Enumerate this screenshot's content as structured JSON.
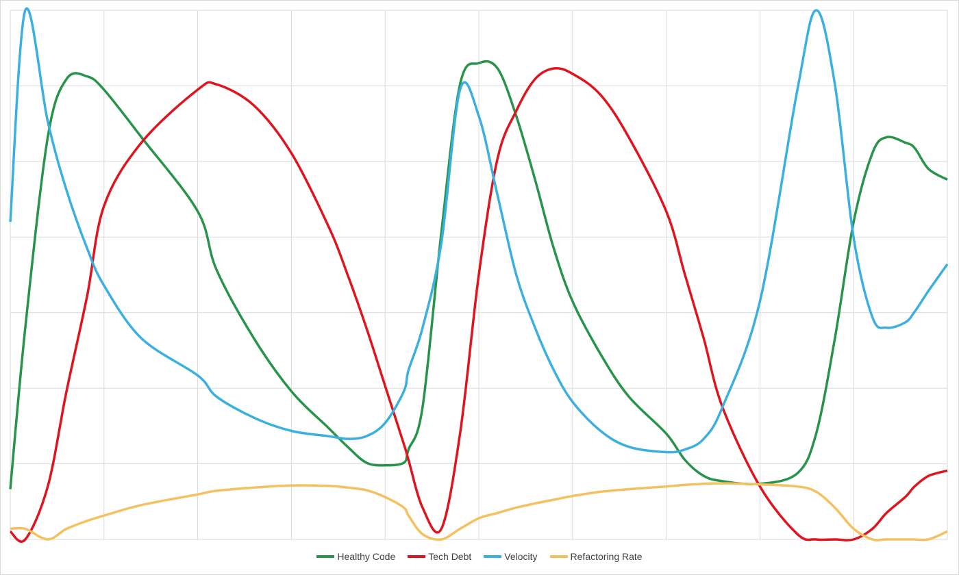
{
  "chart_data": {
    "type": "line",
    "title": "",
    "xlabel": "",
    "ylabel": "",
    "xlim": [
      0,
      100
    ],
    "ylim": [
      0,
      100
    ],
    "grid": true,
    "legend_position": "bottom",
    "x": [
      0,
      1.6,
      4,
      6,
      8.2,
      10,
      14,
      20,
      22,
      26,
      30,
      34,
      36,
      38,
      40,
      42,
      42.5,
      44,
      46,
      48,
      50,
      52,
      54,
      56,
      58,
      60,
      63,
      66,
      70,
      72,
      74,
      76,
      80,
      84,
      86,
      88,
      90,
      92,
      93.5,
      95.5,
      96.5,
      98,
      100
    ],
    "series": [
      {
        "name": "Healthy Code",
        "color": "#27944a",
        "values": [
          9.5,
          40,
          76,
          87,
          87.5,
          85,
          76,
          62,
          51,
          38,
          28,
          21,
          17.5,
          14.5,
          14,
          14.5,
          17,
          25,
          58,
          86,
          90,
          89,
          80,
          68,
          55,
          45,
          35,
          27,
          20,
          15,
          12,
          11,
          10.5,
          12.5,
          20,
          38,
          60,
          73,
          76,
          75,
          74,
          70,
          68
        ]
      },
      {
        "name": "Tech Debt",
        "color": "#e0141e",
        "values": [
          1.5,
          0,
          10,
          28,
          46,
          63,
          75,
          85,
          86,
          82,
          73,
          59,
          50,
          40,
          29,
          18,
          15,
          6,
          2,
          20,
          50,
          72,
          81,
          87,
          89,
          88,
          84,
          76,
          62,
          50,
          38,
          25,
          10,
          1,
          0,
          0,
          0,
          2,
          5,
          8,
          10,
          12,
          13
        ]
      },
      {
        "name": "Velocity",
        "color": "#3bb0e0",
        "values": [
          60,
          100,
          79,
          66,
          55,
          48,
          38,
          31,
          27,
          23,
          20.5,
          19.5,
          19,
          19.5,
          22,
          28,
          32,
          40,
          56,
          85,
          80,
          65,
          50,
          40,
          32,
          26,
          20.5,
          17.5,
          16.5,
          17,
          19,
          25,
          45,
          85,
          100,
          86,
          57,
          42,
          40,
          41,
          43,
          47,
          52
        ]
      },
      {
        "name": "Refactoring Rate",
        "color": "#f5c060",
        "values": [
          2,
          2,
          0,
          2,
          3.5,
          4.5,
          6.5,
          8.5,
          9.2,
          9.8,
          10.2,
          10.1,
          9.8,
          9.3,
          8,
          6,
          4.5,
          1,
          0,
          2,
          4,
          5,
          6,
          6.8,
          7.5,
          8.2,
          9,
          9.5,
          10,
          10.3,
          10.5,
          10.6,
          10.4,
          10,
          9,
          6,
          2,
          0,
          0,
          0,
          0,
          0,
          1.5
        ]
      }
    ]
  }
}
